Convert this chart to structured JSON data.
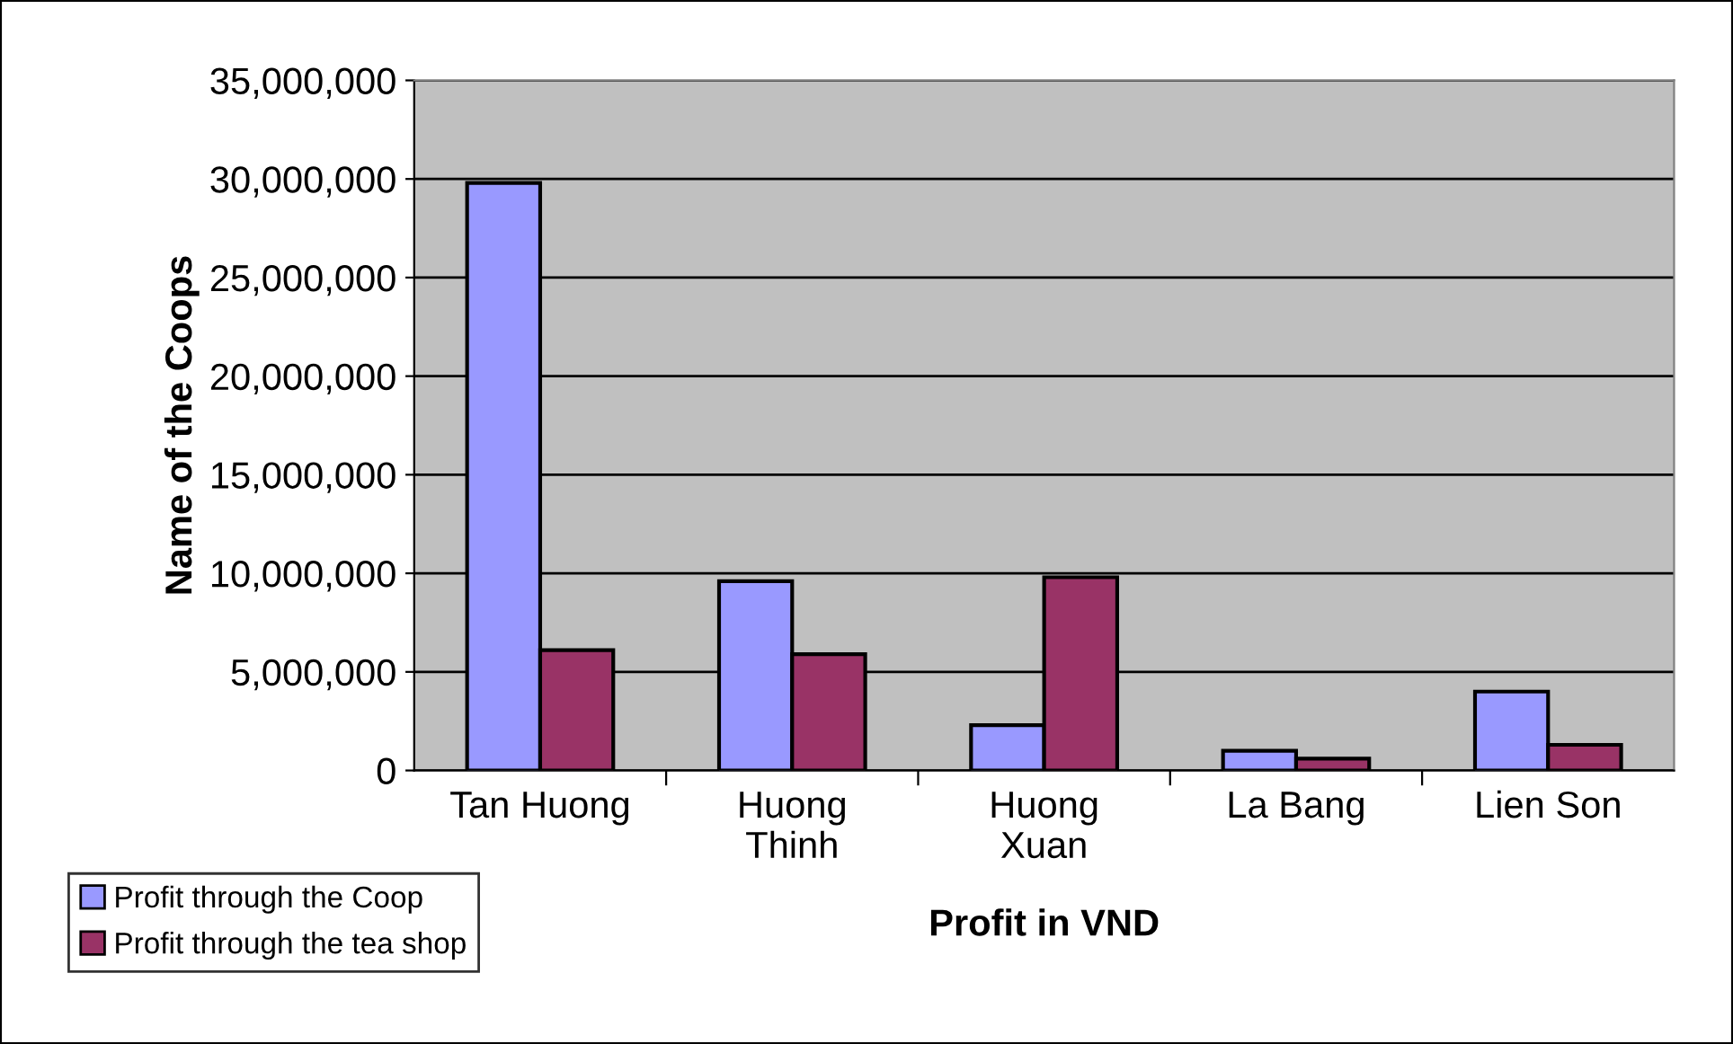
{
  "chart_data": {
    "type": "bar",
    "xlabel": "Profit in VND",
    "ylabel": "Name of the Coops",
    "categories": [
      "Tan Huong",
      "Huong\nThinh",
      "Huong\nXuan",
      "La Bang",
      "Lien Son"
    ],
    "series": [
      {
        "name": "Profit through the Coop",
        "color": "#9999ff",
        "values": [
          29800000,
          9600000,
          2300000,
          1000000,
          4000000
        ]
      },
      {
        "name": "Profit through the tea shop",
        "color": "#993366",
        "values": [
          6100000,
          5900000,
          9800000,
          600000,
          1300000
        ]
      }
    ],
    "ylim": [
      0,
      35000000
    ],
    "yticks": [
      {
        "value": 0,
        "label": "0"
      },
      {
        "value": 5000000,
        "label": "5,000,000"
      },
      {
        "value": 10000000,
        "label": "10,000,000"
      },
      {
        "value": 15000000,
        "label": "15,000,000"
      },
      {
        "value": 20000000,
        "label": "20,000,000"
      },
      {
        "value": 25000000,
        "label": "25,000,000"
      },
      {
        "value": 30000000,
        "label": "30,000,000"
      },
      {
        "value": 35000000,
        "label": "35,000,000"
      }
    ],
    "grid": "y",
    "legend": "bottom left"
  }
}
